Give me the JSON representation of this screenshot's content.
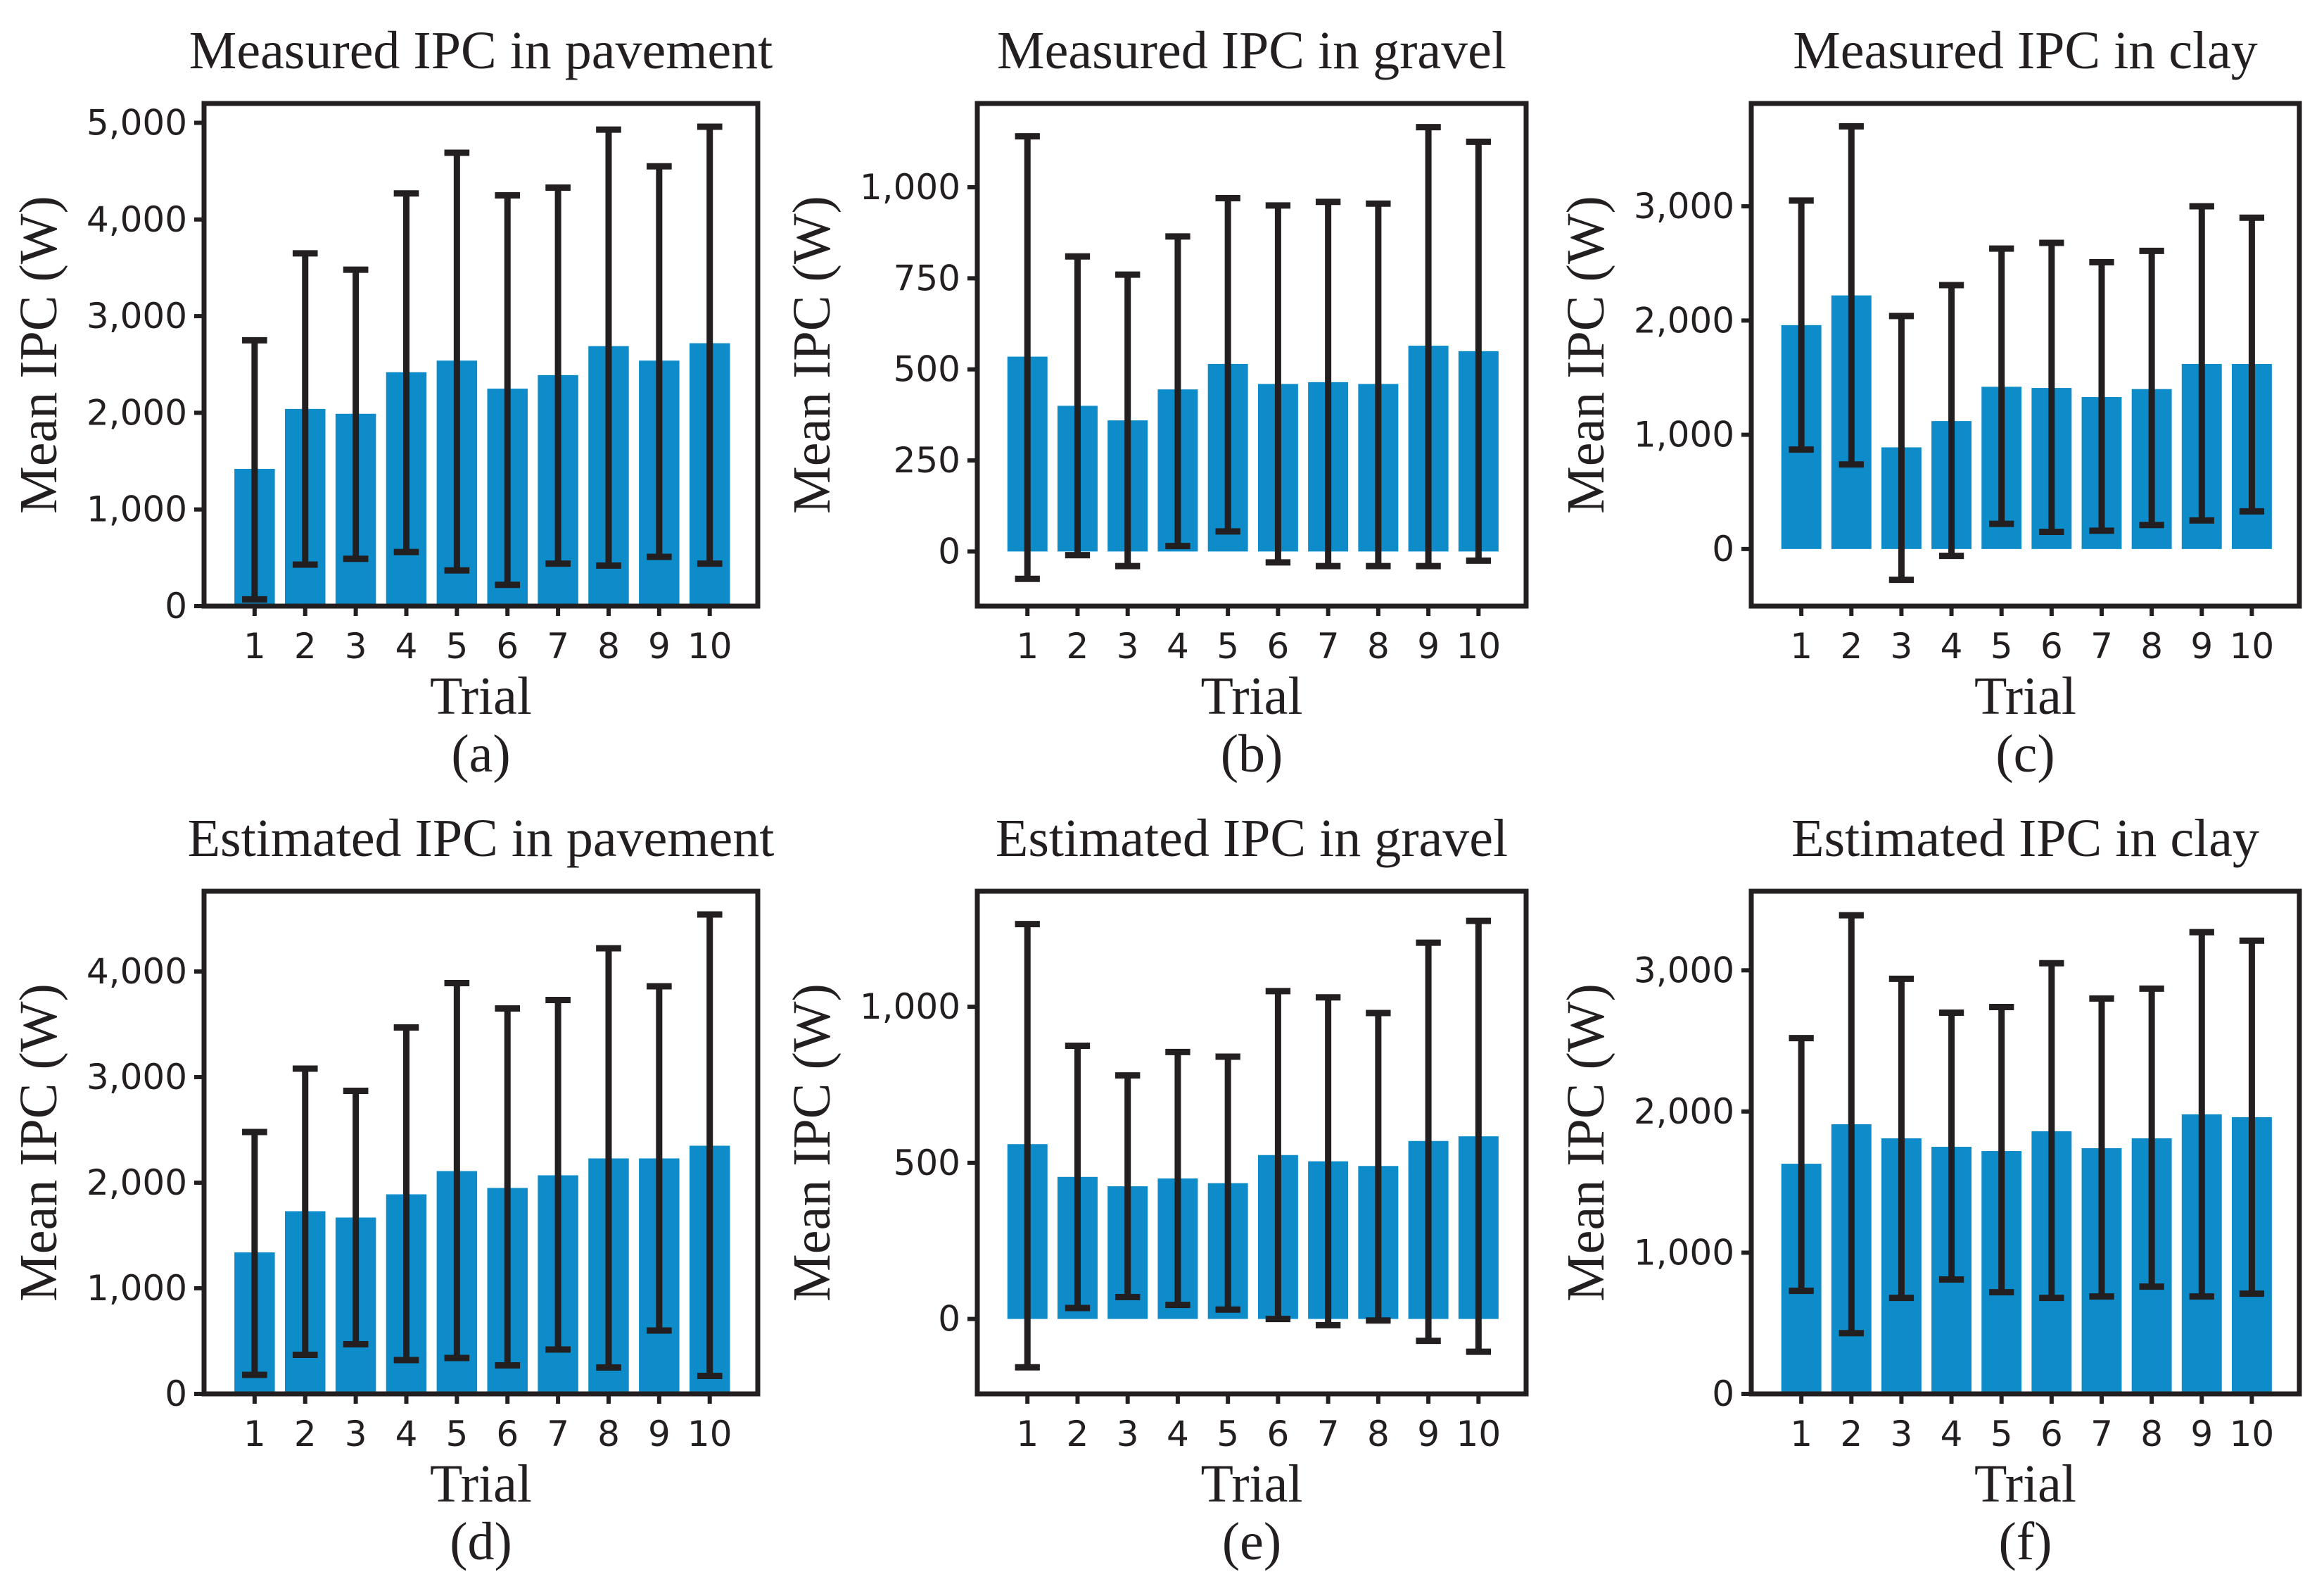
{
  "colors": {
    "bar": "#0e8cc9",
    "error_bar": "#231f20",
    "frame": "#231f20",
    "text": "#231f20"
  },
  "chart_data": [
    {
      "id": "a",
      "type": "bar",
      "title": "Measured IPC in pavement",
      "xlabel": "Trial",
      "ylabel": "Mean IPC (W)",
      "subcaption": "(a)",
      "categories": [
        "1",
        "2",
        "3",
        "4",
        "5",
        "6",
        "7",
        "8",
        "9",
        "10"
      ],
      "values": [
        1420,
        2040,
        1990,
        2420,
        2540,
        2250,
        2390,
        2690,
        2540,
        2720
      ],
      "error_low": [
        70,
        430,
        490,
        560,
        370,
        220,
        440,
        420,
        510,
        440
      ],
      "error_high": [
        2750,
        3650,
        3480,
        4270,
        4690,
        4250,
        4330,
        4930,
        4550,
        4960
      ],
      "ylim": [
        0,
        5200
      ],
      "yticks": [
        0,
        1000,
        2000,
        3000,
        4000,
        5000
      ],
      "ytick_labels": [
        "0",
        "1,000",
        "2,000",
        "3,000",
        "4,000",
        "5,000"
      ]
    },
    {
      "id": "b",
      "type": "bar",
      "title": "Measured IPC in gravel",
      "xlabel": "Trial",
      "ylabel": "Mean IPC (W)",
      "subcaption": "(b)",
      "categories": [
        "1",
        "2",
        "3",
        "4",
        "5",
        "6",
        "7",
        "8",
        "9",
        "10"
      ],
      "values": [
        535,
        400,
        360,
        445,
        515,
        460,
        465,
        460,
        565,
        550
      ],
      "error_low": [
        -75,
        -10,
        -40,
        15,
        55,
        -30,
        -40,
        -40,
        -40,
        -25
      ],
      "error_high": [
        1140,
        810,
        760,
        865,
        970,
        950,
        960,
        955,
        1165,
        1125
      ],
      "ylim": [
        -150,
        1230
      ],
      "yticks": [
        0,
        250,
        500,
        750,
        1000
      ],
      "ytick_labels": [
        "0",
        "250",
        "500",
        "750",
        "1,000"
      ]
    },
    {
      "id": "c",
      "type": "bar",
      "title": "Measured IPC in clay",
      "xlabel": "Trial",
      "ylabel": "Mean IPC (W)",
      "subcaption": "(c)",
      "categories": [
        "1",
        "2",
        "3",
        "4",
        "5",
        "6",
        "7",
        "8",
        "9",
        "10"
      ],
      "values": [
        1960,
        2220,
        890,
        1120,
        1420,
        1410,
        1330,
        1400,
        1620,
        1620
      ],
      "error_low": [
        870,
        740,
        -270,
        -60,
        220,
        150,
        160,
        210,
        250,
        330
      ],
      "error_high": [
        3050,
        3700,
        2040,
        2310,
        2630,
        2680,
        2510,
        2610,
        3000,
        2900
      ],
      "ylim": [
        -500,
        3900
      ],
      "yticks": [
        0,
        1000,
        2000,
        3000
      ],
      "ytick_labels": [
        "0",
        "1,000",
        "2,000",
        "3,000"
      ]
    },
    {
      "id": "d",
      "type": "bar",
      "title": "Estimated IPC in pavement",
      "xlabel": "Trial",
      "ylabel": "Mean IPC (W)",
      "subcaption": "(d)",
      "categories": [
        "1",
        "2",
        "3",
        "4",
        "5",
        "6",
        "7",
        "8",
        "9",
        "10"
      ],
      "values": [
        1340,
        1730,
        1670,
        1890,
        2110,
        1950,
        2070,
        2230,
        2230,
        2350
      ],
      "error_low": [
        180,
        370,
        470,
        320,
        340,
        270,
        420,
        250,
        600,
        170
      ],
      "error_high": [
        2480,
        3080,
        2870,
        3470,
        3890,
        3650,
        3730,
        4220,
        3860,
        4540
      ],
      "ylim": [
        0,
        4760
      ],
      "yticks": [
        0,
        1000,
        2000,
        3000,
        4000
      ],
      "ytick_labels": [
        "0",
        "1,000",
        "2,000",
        "3,000",
        "4,000"
      ]
    },
    {
      "id": "e",
      "type": "bar",
      "title": "Estimated IPC in gravel",
      "xlabel": "Trial",
      "ylabel": "Mean IPC (W)",
      "subcaption": "(e)",
      "categories": [
        "1",
        "2",
        "3",
        "4",
        "5",
        "6",
        "7",
        "8",
        "9",
        "10"
      ],
      "values": [
        560,
        455,
        425,
        450,
        435,
        525,
        505,
        490,
        570,
        585
      ],
      "error_low": [
        -155,
        35,
        70,
        45,
        30,
        0,
        -20,
        -5,
        -70,
        -105
      ],
      "error_high": [
        1265,
        875,
        780,
        855,
        840,
        1050,
        1030,
        980,
        1205,
        1275
      ],
      "ylim": [
        -240,
        1370
      ],
      "yticks": [
        0,
        500,
        1000
      ],
      "ytick_labels": [
        "0",
        "500",
        "1,000"
      ]
    },
    {
      "id": "f",
      "type": "bar",
      "title": "Estimated IPC in clay",
      "xlabel": "Trial",
      "ylabel": "Mean IPC (W)",
      "subcaption": "(f)",
      "categories": [
        "1",
        "2",
        "3",
        "4",
        "5",
        "6",
        "7",
        "8",
        "9",
        "10"
      ],
      "values": [
        1630,
        1910,
        1810,
        1750,
        1720,
        1860,
        1740,
        1810,
        1980,
        1960
      ],
      "error_low": [
        730,
        430,
        680,
        810,
        720,
        680,
        690,
        760,
        690,
        710
      ],
      "error_high": [
        2520,
        3390,
        2940,
        2700,
        2740,
        3050,
        2800,
        2870,
        3270,
        3210
      ],
      "ylim": [
        0,
        3560
      ],
      "yticks": [
        0,
        1000,
        2000,
        3000
      ],
      "ytick_labels": [
        "0",
        "1,000",
        "2,000",
        "3,000"
      ]
    }
  ]
}
